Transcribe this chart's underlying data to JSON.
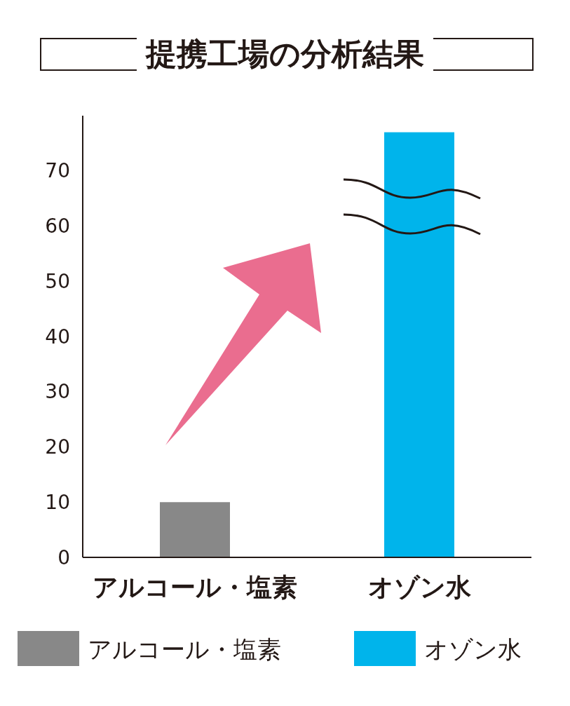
{
  "chart_data": {
    "type": "bar",
    "title": "提携工場の分析結果",
    "categories": [
      "アルコール・塩素",
      "オゾン水"
    ],
    "series": [
      {
        "name": "アルコール・塩素",
        "color": "#888888",
        "values": [
          10,
          null
        ]
      },
      {
        "name": "オゾン水",
        "color": "#00b4eb",
        "values": [
          null,
          77
        ]
      }
    ],
    "ylim": [
      0,
      80
    ],
    "yticks": [
      0,
      10,
      20,
      30,
      40,
      50,
      60,
      70
    ],
    "legend": "bottom",
    "grid": false
  }
}
